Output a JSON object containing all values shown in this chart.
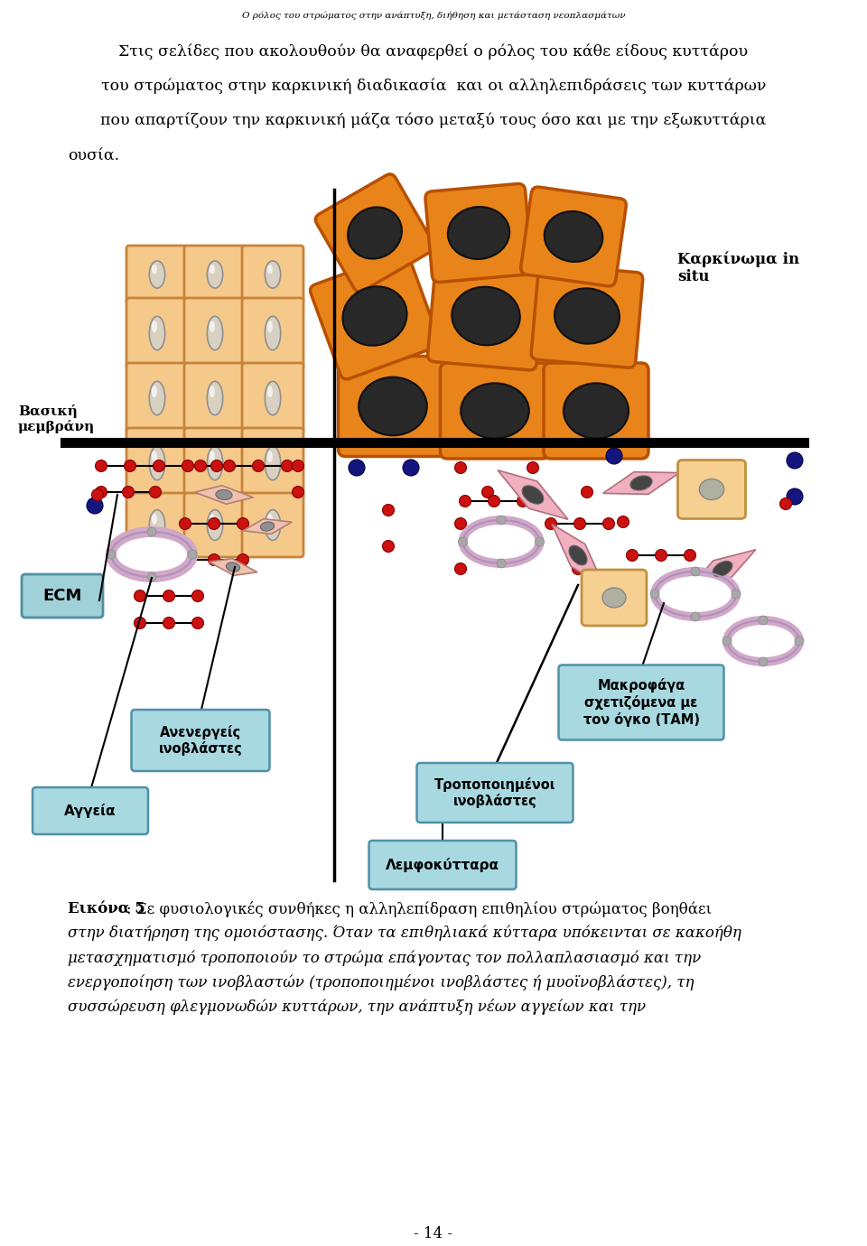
{
  "header_text": "Ο ρόλος του στρώματος στην ανάπτυξη, διήθηση και μετάσταση νεοπλασμάτων",
  "paragraph1": "Στις σελίδες που ακολουθούν θα αναφερθεί ο ρόλος του κάθε είδους κυττάρου",
  "paragraph2": "του στρώματος στην καρκινική διαδικασία  και οι αλληλεπιδράσεις των κυττάρων",
  "paragraph3": "που απαρτίζουν την καρκινική μάζα τόσο μεταξύ τους όσο και με την εξωκυττάρια",
  "paragraph4": "ουσία.",
  "label_karkinoma": "Καρκίνωμα in\nsitu",
  "label_basiki": "Βασική\nμεμβράνη",
  "label_ecm": "ECM",
  "label_anenergeis": "Ανενεργείς\nινοβλάστες",
  "label_makrofaga": "Μακροφάγα\nσχετιζόμενα με\nτον όγκο (ΤΑΜ)",
  "label_tropopoiim": "Τροποποιημένοι\nινοβλάστες",
  "label_ageia": "Αγγεία",
  "label_lymfokyttara": "Λεμφοκύτταρα",
  "caption_bold": "Εικόνα 5",
  "caption_rest": ": Σε φυσιολογικές συνθήκες η αλληλεπίδραση επιθηλίου στρώματος βοηθάει",
  "caption_line2": "στην διατήρηση της ομοιόστασης. Όταν τα επιθηλιακά κύτταρα υπόκεινται σε κακοήθη",
  "caption_line3": "μετασχηματισμό τροποποιούν το στρώμα επάγοντας τον πολλαπλασιασμό και την",
  "caption_line4": "ενεργοποίηση των ινοβλαστών (τροποποιημένοι ινοβλάστες ή μυοϊνοβλάστες), τη",
  "caption_line5": "συσσώρευση φλεγμονωδών κυττάρων, την ανάπτυξη νέων αγγείων και την",
  "page_number": "- 14 -",
  "cell_color_normal": "#F5C98A",
  "cell_edge_normal": "#C8843A",
  "cell_color_cancer": "#E8841A",
  "cell_edge_cancer": "#B85000",
  "cell_nucleus_normal_fc": "#D8D0C0",
  "cell_nucleus_normal_ec": "#909090",
  "cell_nucleus_cancer_fc": "#282828",
  "cell_nucleus_cancer_ec": "#101010",
  "red_dot_color": "#CC1111",
  "blue_dot_color": "#151580",
  "fib_inactive_fc": "#F0C0B0",
  "fib_inactive_ec": "#B08070",
  "fib_active_fc": "#F0B0C0",
  "fib_active_ec": "#B07080",
  "vessel_color": "#D0A8C8",
  "macrophage_fc": "#F5D090",
  "macrophage_ec": "#C09040",
  "ecm_box_fc": "#A0D0D8",
  "ecm_box_ec": "#5090A0",
  "label_box_fc": "#A8D8E0",
  "label_box_ec": "#5090A8"
}
